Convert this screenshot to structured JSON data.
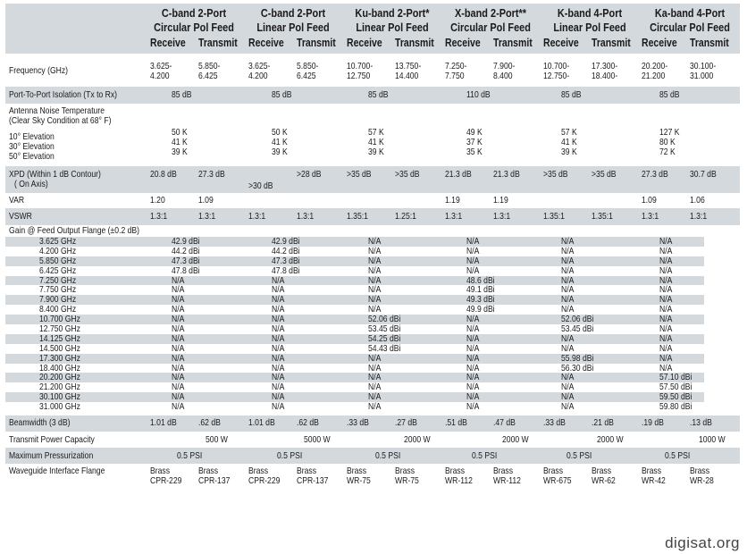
{
  "headers": [
    {
      "title": "C-band 2-Port",
      "subtitle": "Circular Pol Feed",
      "receive": "Receive",
      "transmit": "Transmit"
    },
    {
      "title": "C-band 2-Port",
      "subtitle": "Linear Pol Feed",
      "receive": "Receive",
      "transmit": "Transmit"
    },
    {
      "title": "Ku-band 2-Port*",
      "subtitle": "Linear Pol Feed",
      "receive": "Receive",
      "transmit": "Transmit"
    },
    {
      "title": "X-band 2-Port**",
      "subtitle": "Circular Pol Feed",
      "receive": "Receive",
      "transmit": "Transmit"
    },
    {
      "title": "K-band 4-Port",
      "subtitle": "Linear Pol Feed",
      "receive": "Receive",
      "transmit": "Transmit"
    },
    {
      "title": "Ka-band 4-Port",
      "subtitle": "Circular Pol Feed",
      "receive": "Receive",
      "transmit": "Transmit"
    }
  ],
  "rows": {
    "frequency": {
      "label": "Frequency (GHz)",
      "values": [
        [
          "3.625-",
          "4.200"
        ],
        [
          "5.850-",
          "6.425"
        ],
        [
          "3.625-",
          "4.200"
        ],
        [
          "5.850-",
          "6.425"
        ],
        [
          "10.700-",
          "12.750"
        ],
        [
          "13.750-",
          "14.400"
        ],
        [
          "7.250-",
          "7.750"
        ],
        [
          "7.900-",
          "8.400"
        ],
        [
          "10.700-",
          "12.750-"
        ],
        [
          "17.300-",
          "18.400-"
        ],
        [
          "20.200-",
          "21.200"
        ],
        [
          "30.100-",
          "31.000"
        ]
      ]
    },
    "isolation": {
      "label": "Port-To-Port Isolation (Tx to Rx)",
      "values": [
        "85 dB",
        "85 dB",
        "85 dB",
        "110 dB",
        "85 dB",
        "85 dB"
      ]
    },
    "noise": {
      "label_lines": [
        "Antenna Noise Temperature",
        "(Clear Sky Condition at 68° F)",
        "10° Elevation",
        "30° Elevation",
        "50° Elevation"
      ],
      "values": [
        [
          "50 K",
          "41 K",
          "39 K"
        ],
        [
          "50 K",
          "41 K",
          "39 K"
        ],
        [
          "57 K",
          "41 K",
          "39 K"
        ],
        [
          "49 K",
          "37 K",
          "35 K"
        ],
        [
          "57 K",
          "41 K",
          "39 K"
        ],
        [
          "127 K",
          "80 K",
          "72 K"
        ]
      ]
    },
    "xpd": {
      "label_lines": [
        "XPD (Within 1 dB Contour)",
        "( On Axis)"
      ],
      "values": [
        "20.8 dB",
        "27.3 dB",
        ">30 dB",
        ">28 dB",
        ">35 dB",
        ">35 dB",
        "21.3 dB",
        "21.3 dB",
        ">35 dB",
        ">35 dB",
        "27.3 dB",
        "30.7 dB"
      ]
    },
    "var": {
      "label": "VAR",
      "values": [
        "1.20",
        "1.09",
        "",
        "",
        "",
        "",
        "1.19",
        "1.19",
        "",
        "",
        "1.09",
        "1.06"
      ]
    },
    "vswr": {
      "label": "VSWR",
      "values": [
        "1.3:1",
        "1.3:1",
        "1.3:1",
        "1.3:1",
        "1.35:1",
        "1.25:1",
        "1.3:1",
        "1.3:1",
        "1.35:1",
        "1.35:1",
        "1.3:1",
        "1.3:1"
      ]
    },
    "gain": {
      "label": "Gain @ Feed Output Flange (±0.2 dB)",
      "rows": [
        {
          "freq": "3.625 GHz",
          "values": [
            "42.9 dBi",
            "42.9 dBi",
            "N/A",
            "N/A",
            "N/A",
            "N/A"
          ]
        },
        {
          "freq": "4.200 GHz",
          "values": [
            "44.2 dBi",
            "44.2 dBi",
            "N/A",
            "N/A",
            "N/A",
            "N/A"
          ]
        },
        {
          "freq": "5.850 GHz",
          "values": [
            "47.3 dBi",
            "47.3 dBi",
            "N/A",
            "N/A",
            "N/A",
            "N/A"
          ]
        },
        {
          "freq": "6.425 GHz",
          "values": [
            "47.8 dBi",
            "47.8 dBi",
            "N/A",
            "N/A",
            "N/A",
            "N/A"
          ]
        },
        {
          "freq": "7.250 GHz",
          "values": [
            "N/A",
            "N/A",
            "N/A",
            "48.6 dBi",
            "N/A",
            "N/A"
          ]
        },
        {
          "freq": "7.750 GHz",
          "values": [
            "N/A",
            "N/A",
            "N/A",
            "49.1 dBi",
            "N/A",
            "N/A"
          ]
        },
        {
          "freq": "7.900 GHz",
          "values": [
            "N/A",
            "N/A",
            "N/A",
            "49.3 dBi",
            "N/A",
            "N/A"
          ]
        },
        {
          "freq": "8.400 GHz",
          "values": [
            "N/A",
            "N/A",
            "N/A",
            "49.9 dBi",
            "N/A",
            "N/A"
          ]
        },
        {
          "freq": "10.700 GHz",
          "values": [
            "N/A",
            "N/A",
            "52.06 dBi",
            "N/A",
            "52.06 dBi",
            "N/A"
          ]
        },
        {
          "freq": "12.750 GHz",
          "values": [
            "N/A",
            "N/A",
            "53.45 dBi",
            "N/A",
            "53.45 dBi",
            "N/A"
          ]
        },
        {
          "freq": "14.125 GHz",
          "values": [
            "N/A",
            "N/A",
            "54.25 dBi",
            "N/A",
            "N/A",
            "N/A"
          ]
        },
        {
          "freq": "14.500 GHz",
          "values": [
            "N/A",
            "N/A",
            "54.43 dBi",
            "N/A",
            "N/A",
            "N/A"
          ]
        },
        {
          "freq": "17.300 GHz",
          "values": [
            "N/A",
            "N/A",
            "N/A",
            "N/A",
            "55.98 dBi",
            "N/A"
          ]
        },
        {
          "freq": "18.400 GHz",
          "values": [
            "N/A",
            "N/A",
            "N/A",
            "N/A",
            "56.30 dBi",
            "N/A"
          ]
        },
        {
          "freq": "20.200 GHz",
          "values": [
            "N/A",
            "N/A",
            "N/A",
            "N/A",
            "N/A",
            "57.10 dBi"
          ]
        },
        {
          "freq": "21.200 GHz",
          "values": [
            "N/A",
            "N/A",
            "N/A",
            "N/A",
            "N/A",
            "57.50 dBi"
          ]
        },
        {
          "freq": "30.100 GHz",
          "values": [
            "N/A",
            "N/A",
            "N/A",
            "N/A",
            "N/A",
            "59.50 dBi"
          ]
        },
        {
          "freq": "31.000 GHz",
          "values": [
            "N/A",
            "N/A",
            "N/A",
            "N/A",
            "N/A",
            "59.80 dBi"
          ]
        }
      ]
    },
    "beamwidth": {
      "label": "Beamwidth (3 dB)",
      "values": [
        "1.01 dB",
        ".62 dB",
        "1.01 dB",
        ".62 dB",
        ".33 dB",
        ".27 dB",
        ".51 dB",
        ".47 dB",
        ".33 dB",
        ".21 dB",
        ".19 dB",
        ".13 dB"
      ]
    },
    "power": {
      "label": "Transmit Power Capacity",
      "values": [
        "500 W",
        "5000 W",
        "2000 W",
        "2000 W",
        "2000 W",
        "1000 W"
      ]
    },
    "pressure": {
      "label": "Maximum Pressurization",
      "values": [
        "0.5 PSI",
        "0.5 PSI",
        "0.5 PSI",
        "0.5 PSI",
        "0.5 PSI",
        "0.5 PSI"
      ]
    },
    "flange": {
      "label": "Waveguide Interface Flange",
      "values": [
        [
          "Brass",
          "CPR-229"
        ],
        [
          "Brass",
          "CPR-137"
        ],
        [
          "Brass",
          "CPR-229"
        ],
        [
          "Brass",
          "CPR-137"
        ],
        [
          "Brass",
          "WR-75"
        ],
        [
          "Brass",
          "WR-75"
        ],
        [
          "Brass",
          "WR-112"
        ],
        [
          "Brass",
          "WR-112"
        ],
        [
          "Brass",
          "WR-675"
        ],
        [
          "Brass",
          "WR-62"
        ],
        [
          "Brass",
          "WR-42"
        ],
        [
          "Brass",
          "WR-28"
        ]
      ]
    }
  },
  "watermark": "digisat.org"
}
